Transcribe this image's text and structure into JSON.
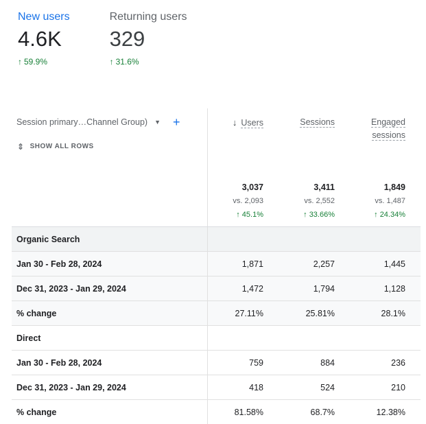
{
  "metrics": {
    "new_users": {
      "label": "New users",
      "value": "4.6K",
      "change": "59.9%"
    },
    "returning_users": {
      "label": "Returning users",
      "value": "329",
      "change": "31.6%"
    }
  },
  "table": {
    "dimension_label": "Session primary…Channel Group)",
    "show_all_rows": "SHOW ALL ROWS",
    "columns": {
      "users": "Users",
      "sessions": "Sessions",
      "engaged_line1": "Engaged",
      "engaged_line2": "sessions"
    },
    "totals": {
      "users": {
        "value": "3,037",
        "vs": "vs. 2,093",
        "change": "45.1%"
      },
      "sessions": {
        "value": "3,411",
        "vs": "vs. 2,552",
        "change": "33.66%"
      },
      "engaged": {
        "value": "1,849",
        "vs": "vs. 1,487",
        "change": "24.34%"
      }
    },
    "rows": [
      {
        "label": "Organic Search",
        "users": "",
        "sessions": "",
        "engaged": ""
      },
      {
        "label": "Jan 30 - Feb 28, 2024",
        "users": "1,871",
        "sessions": "2,257",
        "engaged": "1,445"
      },
      {
        "label": "Dec 31, 2023 - Jan 29, 2024",
        "users": "1,472",
        "sessions": "1,794",
        "engaged": "1,128"
      },
      {
        "label": "% change",
        "users": "27.11%",
        "sessions": "25.81%",
        "engaged": "28.1%"
      },
      {
        "label": "Direct",
        "users": "",
        "sessions": "",
        "engaged": ""
      },
      {
        "label": "Jan 30 - Feb 28, 2024",
        "users": "759",
        "sessions": "884",
        "engaged": "236"
      },
      {
        "label": "Dec 31, 2023 - Jan 29, 2024",
        "users": "418",
        "sessions": "524",
        "engaged": "210"
      },
      {
        "label": "% change",
        "users": "81.58%",
        "sessions": "68.7%",
        "engaged": "12.38%"
      }
    ]
  },
  "colors": {
    "accent": "#1a73e8",
    "positive": "#188038",
    "group_bg": "#f1f3f4"
  }
}
